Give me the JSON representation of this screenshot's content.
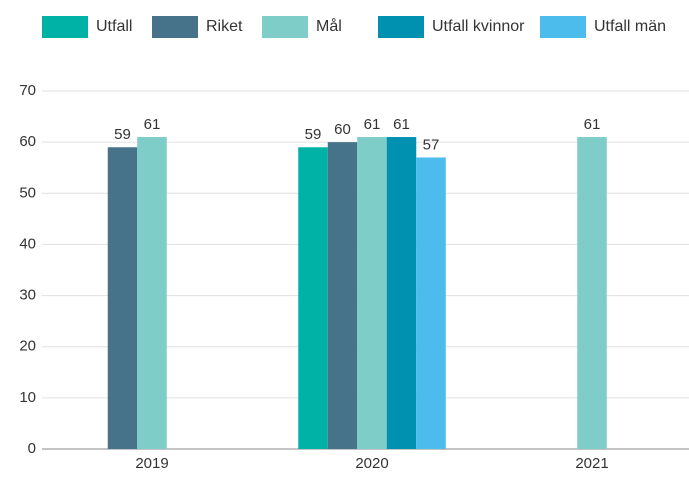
{
  "chart_data": {
    "type": "bar",
    "categories": [
      "2019",
      "2020",
      "2021"
    ],
    "series": [
      {
        "name": "Utfall",
        "color": "#00b2a5",
        "values": [
          null,
          59,
          null
        ]
      },
      {
        "name": "Riket",
        "color": "#46738a",
        "values": [
          59,
          60,
          null
        ]
      },
      {
        "name": "Mål",
        "color": "#7fcdc8",
        "values": [
          61,
          61,
          61
        ]
      },
      {
        "name": "Utfall kvinnor",
        "color": "#0091b0",
        "values": [
          null,
          61,
          null
        ]
      },
      {
        "name": "Utfall män",
        "color": "#4cbcec",
        "values": [
          null,
          57,
          null
        ]
      }
    ],
    "ylim": [
      0,
      70
    ],
    "yticks": [
      0,
      10,
      20,
      30,
      40,
      50,
      60,
      70
    ],
    "grid": true,
    "legend": "top"
  }
}
